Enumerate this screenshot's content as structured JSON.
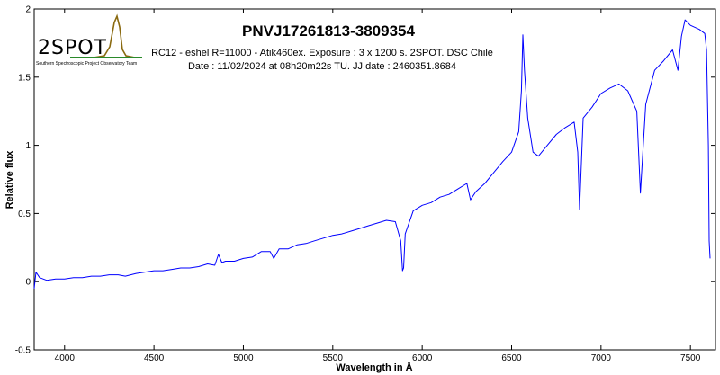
{
  "chart_data": {
    "type": "line",
    "title": "PNVJ17261813-3809354",
    "subtitle_line1": "RC12 - eshel R=11000 - Atik460ex. Exposure : 3 x 1200 s. 2SPOT. DSC Chile",
    "subtitle_line2": "Date : 11/02/2024 at 08h20m22s TU. JJ date : 2460351.8684",
    "xlabel": "Wavelength in Å",
    "ylabel": "Relative flux",
    "xlim": [
      3830,
      7640
    ],
    "ylim": [
      -0.5,
      2
    ],
    "xticks": [
      4000,
      4500,
      5000,
      5500,
      6000,
      6500,
      7000,
      7500
    ],
    "xtick_labels": [
      "4000",
      "4500",
      "5000",
      "5500",
      "6000",
      "6500",
      "7000",
      "7500"
    ],
    "yticks": [
      -0.5,
      0,
      0.5,
      1,
      1.5,
      2
    ],
    "ytick_labels": [
      "-0.5",
      "0",
      "0.5",
      "1",
      "1.5",
      "2"
    ],
    "grid": false,
    "series": [
      {
        "color": "#0000ff",
        "x": [
          3830,
          3840,
          3860,
          3900,
          3950,
          4000,
          4050,
          4100,
          4150,
          4200,
          4250,
          4300,
          4340,
          4400,
          4450,
          4500,
          4550,
          4600,
          4650,
          4700,
          4750,
          4800,
          4840,
          4861,
          4880,
          4900,
          4950,
          5000,
          5050,
          5100,
          5150,
          5170,
          5200,
          5250,
          5300,
          5350,
          5400,
          5450,
          5500,
          5550,
          5600,
          5650,
          5700,
          5750,
          5800,
          5850,
          5880,
          5890,
          5896,
          5905,
          5950,
          6000,
          6050,
          6100,
          6150,
          6200,
          6250,
          6270,
          6300,
          6350,
          6400,
          6450,
          6500,
          6540,
          6555,
          6563,
          6572,
          6590,
          6620,
          6650,
          6700,
          6750,
          6800,
          6850,
          6870,
          6880,
          6900,
          6950,
          7000,
          7050,
          7100,
          7150,
          7200,
          7220,
          7250,
          7300,
          7350,
          7400,
          7430,
          7450,
          7470,
          7500,
          7550,
          7580,
          7590,
          7600,
          7605,
          7610
        ],
        "y": [
          -0.05,
          0.07,
          0.03,
          0.01,
          0.02,
          0.02,
          0.03,
          0.03,
          0.04,
          0.04,
          0.05,
          0.05,
          0.04,
          0.06,
          0.07,
          0.08,
          0.08,
          0.09,
          0.1,
          0.1,
          0.11,
          0.13,
          0.12,
          0.2,
          0.14,
          0.15,
          0.15,
          0.17,
          0.18,
          0.22,
          0.22,
          0.17,
          0.24,
          0.24,
          0.27,
          0.28,
          0.3,
          0.32,
          0.34,
          0.35,
          0.37,
          0.39,
          0.41,
          0.43,
          0.45,
          0.44,
          0.3,
          0.08,
          0.1,
          0.35,
          0.52,
          0.56,
          0.58,
          0.62,
          0.64,
          0.68,
          0.72,
          0.6,
          0.66,
          0.72,
          0.8,
          0.88,
          0.95,
          1.1,
          1.4,
          1.81,
          1.55,
          1.2,
          0.95,
          0.92,
          1.0,
          1.08,
          1.13,
          1.17,
          0.95,
          0.53,
          1.2,
          1.28,
          1.38,
          1.42,
          1.45,
          1.4,
          1.25,
          0.65,
          1.3,
          1.55,
          1.62,
          1.7,
          1.55,
          1.8,
          1.92,
          1.88,
          1.85,
          1.82,
          1.7,
          1.0,
          0.3,
          0.17
        ]
      }
    ]
  },
  "logo": {
    "name": "2SPOT",
    "tagline": "Southern Spectroscopic Project Observatory Team"
  }
}
